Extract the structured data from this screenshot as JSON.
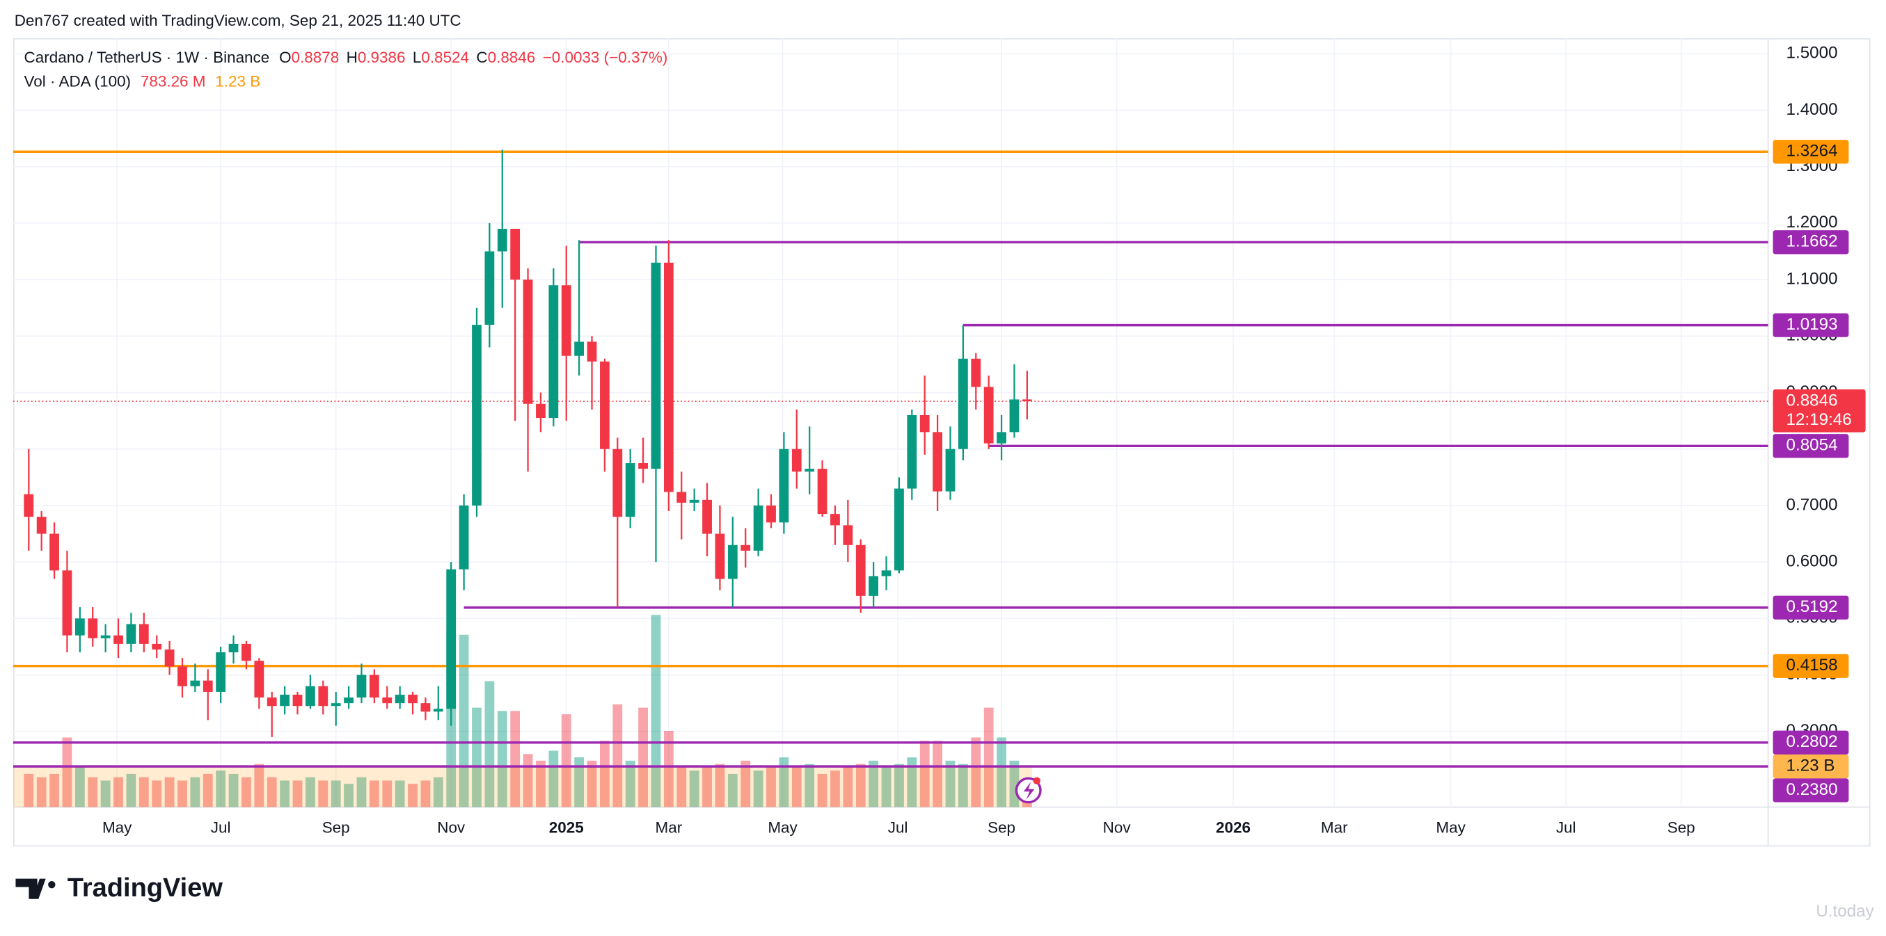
{
  "credit": "Den767 created with TradingView.com, Sep 21, 2025 11:40 UTC",
  "brand": "TradingView",
  "watermark": "U.today",
  "chart_data": {
    "type": "candlestick",
    "title": "Cardano / TetherUS · 1W · Binance",
    "ohlc_letters": [
      "O",
      "H",
      "L",
      "C"
    ],
    "change_label": "−0.0033 (−0.37%)",
    "volume_title": "Vol · ADA (100)",
    "volume_last_label": "783.26 M",
    "volume_ma": {
      "value": 1.23,
      "label": "1.23 B"
    },
    "countdown": "12:19:46",
    "up_color": "#089981",
    "down_color": "#f23645",
    "open": [
      0.72,
      0.68,
      0.65,
      0.585,
      0.47,
      0.5,
      0.465,
      0.47,
      0.455,
      0.49,
      0.455,
      0.445,
      0.415,
      0.38,
      0.39,
      0.37,
      0.44,
      0.455,
      0.425,
      0.36,
      0.345,
      0.365,
      0.345,
      0.38,
      0.345,
      0.35,
      0.36,
      0.4,
      0.36,
      0.35,
      0.365,
      0.35,
      0.335,
      0.34,
      0.587,
      0.7,
      1.02,
      1.15,
      1.19,
      1.1,
      0.88,
      0.855,
      1.09,
      0.965,
      0.99,
      0.955,
      0.8,
      0.68,
      0.775,
      0.765,
      1.13,
      0.724,
      0.705,
      0.71,
      0.65,
      0.57,
      0.63,
      0.62,
      0.7,
      0.67,
      0.8,
      0.76,
      0.765,
      0.685,
      0.665,
      0.63,
      0.54,
      0.575,
      0.585,
      0.73,
      0.86,
      0.83,
      0.725,
      0.8,
      0.96,
      0.91,
      0.81,
      0.83,
      0.8878
    ],
    "high": [
      0.8,
      0.69,
      0.67,
      0.62,
      0.52,
      0.52,
      0.49,
      0.5,
      0.51,
      0.51,
      0.47,
      0.46,
      0.43,
      0.42,
      0.41,
      0.45,
      0.47,
      0.46,
      0.43,
      0.37,
      0.38,
      0.37,
      0.4,
      0.39,
      0.37,
      0.38,
      0.42,
      0.41,
      0.38,
      0.38,
      0.37,
      0.36,
      0.38,
      0.6,
      0.72,
      1.05,
      1.2,
      1.33,
      1.19,
      1.12,
      0.9,
      1.12,
      1.16,
      1.17,
      1.0,
      0.96,
      0.82,
      0.8,
      0.82,
      1.16,
      1.17,
      0.76,
      0.73,
      0.74,
      0.7,
      0.68,
      0.66,
      0.73,
      0.72,
      0.83,
      0.87,
      0.84,
      0.78,
      0.7,
      0.71,
      0.64,
      0.6,
      0.61,
      0.75,
      0.87,
      0.93,
      0.86,
      0.84,
      1.02,
      0.97,
      0.93,
      0.86,
      0.95,
      0.9386
    ],
    "low": [
      0.62,
      0.62,
      0.57,
      0.44,
      0.44,
      0.45,
      0.44,
      0.43,
      0.44,
      0.44,
      0.43,
      0.4,
      0.36,
      0.37,
      0.32,
      0.35,
      0.42,
      0.41,
      0.34,
      0.29,
      0.33,
      0.33,
      0.34,
      0.33,
      0.31,
      0.34,
      0.35,
      0.35,
      0.34,
      0.34,
      0.33,
      0.32,
      0.32,
      0.31,
      0.55,
      0.68,
      0.98,
      1.05,
      0.85,
      0.76,
      0.83,
      0.84,
      0.85,
      0.93,
      0.87,
      0.76,
      0.52,
      0.66,
      0.74,
      0.6,
      0.69,
      0.64,
      0.69,
      0.61,
      0.55,
      0.52,
      0.59,
      0.61,
      0.66,
      0.65,
      0.73,
      0.72,
      0.68,
      0.63,
      0.6,
      0.51,
      0.52,
      0.55,
      0.58,
      0.71,
      0.79,
      0.69,
      0.71,
      0.78,
      0.87,
      0.8,
      0.78,
      0.82,
      0.8524
    ],
    "close": [
      0.68,
      0.65,
      0.585,
      0.47,
      0.5,
      0.465,
      0.47,
      0.455,
      0.49,
      0.455,
      0.445,
      0.415,
      0.38,
      0.39,
      0.37,
      0.44,
      0.455,
      0.425,
      0.36,
      0.345,
      0.365,
      0.345,
      0.38,
      0.345,
      0.35,
      0.36,
      0.4,
      0.36,
      0.35,
      0.365,
      0.35,
      0.335,
      0.34,
      0.587,
      0.7,
      1.02,
      1.15,
      1.19,
      1.1,
      0.88,
      0.855,
      1.09,
      0.965,
      0.99,
      0.955,
      0.8,
      0.68,
      0.775,
      0.765,
      1.13,
      0.724,
      0.705,
      0.71,
      0.65,
      0.57,
      0.63,
      0.62,
      0.7,
      0.67,
      0.8,
      0.76,
      0.765,
      0.685,
      0.665,
      0.63,
      0.54,
      0.575,
      0.585,
      0.73,
      0.86,
      0.83,
      0.725,
      0.8,
      0.96,
      0.91,
      0.81,
      0.83,
      0.8878,
      0.8846
    ],
    "volume": [
      1.0,
      0.9,
      1.0,
      2.1,
      1.2,
      0.9,
      0.8,
      0.9,
      1.0,
      0.9,
      0.8,
      0.9,
      0.8,
      0.9,
      1.0,
      1.1,
      1.0,
      0.9,
      1.3,
      0.9,
      0.8,
      0.8,
      0.9,
      0.8,
      0.8,
      0.7,
      0.9,
      0.8,
      0.8,
      0.8,
      0.7,
      0.8,
      0.9,
      5.3,
      5.2,
      3.0,
      3.8,
      2.9,
      2.9,
      1.6,
      1.4,
      1.7,
      2.8,
      1.5,
      1.4,
      2.0,
      3.1,
      1.4,
      3.0,
      5.8,
      2.3,
      1.2,
      1.1,
      1.2,
      1.3,
      1.0,
      1.4,
      1.1,
      1.2,
      1.5,
      1.2,
      1.3,
      1.0,
      1.1,
      1.2,
      1.3,
      1.4,
      1.2,
      1.3,
      1.5,
      2.0,
      2.0,
      1.4,
      1.3,
      2.1,
      3.0,
      2.1,
      1.4,
      0.78326
    ],
    "xlim": [
      -1.21,
      142.0
    ],
    "xticks": [
      {
        "value": 6.9,
        "label": "May"
      },
      {
        "value": 15.0,
        "label": "Jul"
      },
      {
        "value": 24.0,
        "label": "Sep"
      },
      {
        "value": 33.0,
        "label": "Nov"
      },
      {
        "value": 42.0,
        "label": "2025"
      },
      {
        "value": 50.0,
        "label": "Mar"
      },
      {
        "value": 58.9,
        "label": "May"
      },
      {
        "value": 67.9,
        "label": "Jul"
      },
      {
        "value": 76.0,
        "label": "Sep"
      },
      {
        "value": 85.0,
        "label": "Nov"
      },
      {
        "value": 94.1,
        "label": "2026"
      },
      {
        "value": 102.0,
        "label": "Mar"
      },
      {
        "value": 111.1,
        "label": "May"
      },
      {
        "value": 120.1,
        "label": "Jul"
      },
      {
        "value": 129.1,
        "label": "Sep"
      }
    ],
    "ylim": [
      0.166,
      1.5275
    ],
    "yticks": [
      {
        "value": 0.3,
        "label": "0.3000"
      },
      {
        "value": 0.4,
        "label": "0.4000"
      },
      {
        "value": 0.5,
        "label": "0.5000"
      },
      {
        "value": 0.6,
        "label": "0.6000"
      },
      {
        "value": 0.7,
        "label": "0.7000"
      },
      {
        "value": 0.8,
        "label": "0.8000"
      },
      {
        "value": 0.9,
        "label": "0.9000"
      },
      {
        "value": 1.0,
        "label": "1.0000"
      },
      {
        "value": 1.1,
        "label": "1.1000"
      },
      {
        "value": 1.2,
        "label": "1.2000"
      },
      {
        "value": 1.3,
        "label": "1.3000"
      },
      {
        "value": 1.4,
        "label": "1.4000"
      },
      {
        "value": 1.5,
        "label": "1.5000"
      }
    ],
    "vlim": [
      0,
      23.2
    ],
    "grid": true,
    "levels": [
      {
        "value": 1.3264,
        "label": "1.3264",
        "color": "#ff9800"
      },
      {
        "value": 1.1662,
        "label": "1.1662",
        "color": "#9c27b0",
        "start": 43
      },
      {
        "value": 1.0193,
        "label": "1.0193",
        "color": "#9c27b0",
        "start": 73
      },
      {
        "value": 0.8054,
        "label": "0.8054",
        "color": "#9c27b0",
        "start": 75
      },
      {
        "value": 0.5192,
        "label": "0.5192",
        "color": "#9c27b0",
        "start": 34
      },
      {
        "value": 0.4158,
        "label": "0.4158",
        "color": "#ff9800"
      },
      {
        "value": 0.2802,
        "label": "0.2802",
        "color": "#9c27b0"
      },
      {
        "value": 0.238,
        "label": "0.2380",
        "color": "#9c27b0"
      }
    ]
  }
}
